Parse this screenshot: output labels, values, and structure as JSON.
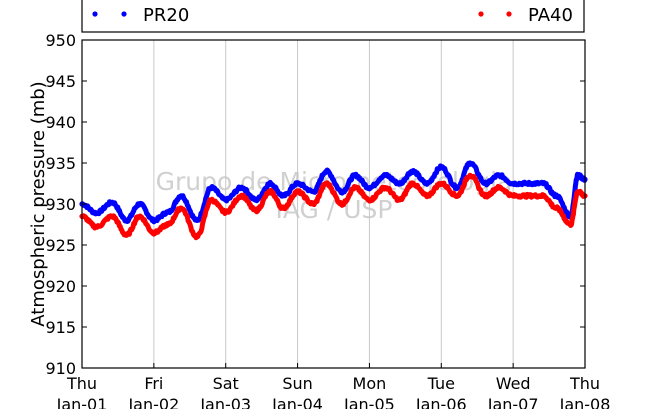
{
  "chart_data": {
    "type": "line",
    "ylabel": "Atmospheric pressure (mb)",
    "xlabel": "",
    "ylim": [
      910,
      950
    ],
    "yticks": [
      910,
      915,
      920,
      925,
      930,
      935,
      940,
      945,
      950
    ],
    "xlim": [
      0,
      7
    ],
    "xticks": [
      {
        "x": 0,
        "day": "Thu",
        "date": "Jan-01"
      },
      {
        "x": 1,
        "day": "Fri",
        "date": "Jan-02"
      },
      {
        "x": 2,
        "day": "Sat",
        "date": "Jan-03"
      },
      {
        "x": 3,
        "day": "Sun",
        "date": "Jan-04"
      },
      {
        "x": 4,
        "day": "Mon",
        "date": "Jan-05"
      },
      {
        "x": 5,
        "day": "Tue",
        "date": "Jan-06"
      },
      {
        "x": 6,
        "day": "Wed",
        "date": "Jan-07"
      },
      {
        "x": 7,
        "day": "Thu",
        "date": "Jan-08"
      }
    ],
    "grid": "vertical",
    "legend_placement": "top",
    "watermark": [
      "Grupo de Micrometeorologia",
      "IAG / USP"
    ],
    "series": [
      {
        "name": "PR20",
        "color": "#0000ff",
        "x": [
          0,
          0.2,
          0.42,
          0.62,
          0.8,
          1.0,
          1.2,
          1.38,
          1.6,
          1.8,
          2.0,
          2.22,
          2.42,
          2.62,
          2.8,
          3.0,
          3.22,
          3.4,
          3.62,
          3.8,
          4.0,
          4.22,
          4.42,
          4.6,
          4.8,
          5.0,
          5.22,
          5.4,
          5.62,
          5.8,
          6.0,
          6.22,
          6.42,
          6.6,
          6.8,
          6.9,
          7.0
        ],
        "y": [
          930.0,
          928.9,
          930.2,
          928.0,
          930.0,
          928.0,
          929.0,
          931.0,
          928.0,
          932.0,
          930.5,
          932.0,
          930.5,
          932.5,
          931.0,
          932.5,
          931.5,
          934.0,
          931.5,
          933.5,
          932.0,
          933.5,
          932.5,
          934.0,
          932.5,
          934.5,
          932.0,
          935.0,
          932.5,
          933.5,
          932.5,
          932.5,
          932.5,
          931.0,
          928.5,
          933.5,
          933.0
        ]
      },
      {
        "name": "PA40",
        "color": "#ff0000",
        "x": [
          0,
          0.2,
          0.42,
          0.62,
          0.8,
          1.0,
          1.2,
          1.38,
          1.6,
          1.8,
          2.0,
          2.22,
          2.42,
          2.62,
          2.8,
          3.0,
          3.22,
          3.4,
          3.62,
          3.8,
          4.0,
          4.22,
          4.42,
          4.6,
          4.8,
          5.0,
          5.22,
          5.4,
          5.62,
          5.8,
          6.0,
          6.22,
          6.42,
          6.6,
          6.8,
          6.9,
          7.0
        ],
        "y": [
          928.5,
          927.2,
          928.5,
          926.2,
          928.5,
          926.5,
          927.5,
          929.5,
          926.0,
          930.5,
          929.0,
          931.0,
          929.2,
          931.5,
          929.5,
          931.5,
          930.0,
          932.5,
          930.0,
          932.0,
          930.5,
          932.0,
          930.5,
          932.5,
          931.0,
          932.5,
          931.0,
          933.5,
          931.0,
          932.0,
          931.0,
          931.0,
          931.0,
          929.5,
          927.5,
          931.5,
          931.0
        ]
      }
    ]
  }
}
